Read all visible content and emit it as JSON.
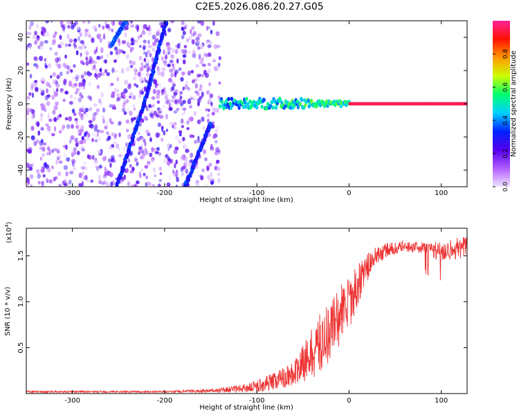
{
  "figure_title": "C2E5.2026.086.20.27.G05",
  "chart_data": [
    {
      "type": "heatmap",
      "title": "C2E5.2026.086.20.27.G05",
      "xlabel": "Height of straight line (km)",
      "ylabel": "Frequency (Hz)",
      "xlim": [
        -350,
        128
      ],
      "ylim": [
        -50,
        50
      ],
      "x_ticks": [
        -300,
        -200,
        -100,
        0,
        100
      ],
      "y_ticks": [
        -40,
        -20,
        0,
        20,
        40
      ],
      "colorbar": {
        "label": "Normalized spectral amplitude",
        "range": [
          0,
          1
        ],
        "ticks": [
          0.0,
          0.2,
          0.4,
          0.6,
          0.8
        ],
        "colors": [
          "#f0e4ff",
          "#b15cff",
          "#5500ee",
          "#0022ff",
          "#00d0ff",
          "#00ff70",
          "#ccff00",
          "#ff9900",
          "#ff1100",
          "#ff2299"
        ]
      },
      "features": [
        {
          "name": "noise-field",
          "x_range": [
            -350,
            -140
          ],
          "description_level": 0.15
        },
        {
          "name": "diagonal-streak-1",
          "points": [
            [
              -252,
              -50
            ],
            [
              -222,
              0
            ],
            [
              -198,
              50
            ]
          ],
          "level": 0.25
        },
        {
          "name": "diagonal-streak-2",
          "points": [
            [
              -178,
              -50
            ],
            [
              -150,
              -12
            ]
          ],
          "level": 0.25
        },
        {
          "name": "diagonal-streak-3",
          "points": [
            [
              -258,
              35
            ],
            [
              -242,
              50
            ]
          ],
          "level": 0.3
        },
        {
          "name": "carrier-line",
          "x_range": [
            -140,
            128
          ],
          "frequency": 0,
          "level_start": 0.3,
          "level_end": 1.0
        }
      ]
    },
    {
      "type": "line",
      "xlabel": "Height of straight line (km)",
      "ylabel": "SNR (10 * v/v)",
      "y_scale_label": "(x10",
      "y_scale_exponent": "4",
      "xlim": [
        -350,
        128
      ],
      "ylim": [
        0,
        1.8
      ],
      "x_ticks": [
        -300,
        -200,
        -100,
        0,
        100
      ],
      "y_ticks": [
        0.5,
        1.0,
        1.5
      ],
      "y_tick_labels": [
        "0.5",
        "1.0",
        "1.5"
      ],
      "series": [
        {
          "name": "SNR",
          "color": "#ee3333",
          "x": [
            -350,
            -300,
            -250,
            -200,
            -150,
            -120,
            -100,
            -80,
            -60,
            -50,
            -40,
            -30,
            -20,
            -10,
            0,
            10,
            20,
            30,
            40,
            60,
            80,
            100,
            128
          ],
          "values": [
            0.02,
            0.02,
            0.02,
            0.02,
            0.03,
            0.05,
            0.08,
            0.14,
            0.22,
            0.32,
            0.45,
            0.55,
            0.7,
            0.85,
            0.98,
            1.2,
            1.38,
            1.5,
            1.56,
            1.6,
            1.59,
            1.55,
            1.6
          ],
          "spread": [
            0.01,
            0.01,
            0.01,
            0.01,
            0.02,
            0.04,
            0.07,
            0.1,
            0.14,
            0.2,
            0.28,
            0.35,
            0.35,
            0.35,
            0.3,
            0.22,
            0.15,
            0.1,
            0.08,
            0.06,
            0.06,
            0.12,
            0.12
          ]
        }
      ]
    }
  ]
}
